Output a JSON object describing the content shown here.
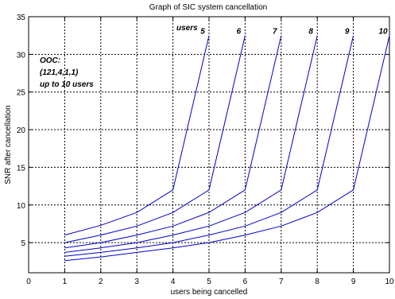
{
  "chart_data": {
    "type": "line",
    "title": "Graph of SIC system cancellation",
    "xlabel": "users being cancelled",
    "ylabel": "SNR after cancellation",
    "xlim": [
      0,
      10
    ],
    "ylim": [
      1,
      35
    ],
    "xticks": [
      0,
      1,
      2,
      3,
      4,
      5,
      6,
      7,
      8,
      9,
      10
    ],
    "yticks": [
      5,
      10,
      15,
      20,
      25,
      30,
      35
    ],
    "grid": true,
    "line_color": "#0000cc",
    "annotation_lines": [
      "OOC:",
      "(121,4,1,1)",
      "up to 10 users"
    ],
    "users_header": "users",
    "series": [
      {
        "label": "5",
        "x": [
          1,
          2,
          3,
          4,
          5
        ],
        "y": [
          6,
          7.3,
          9,
          12,
          32.5
        ]
      },
      {
        "label": "6",
        "x": [
          1,
          2,
          3,
          4,
          5,
          6
        ],
        "y": [
          5,
          6,
          7.2,
          9,
          12,
          32.5
        ]
      },
      {
        "label": "7",
        "x": [
          1,
          2,
          3,
          4,
          5,
          6,
          7
        ],
        "y": [
          4.3,
          5,
          6,
          7.2,
          9,
          12,
          32.5
        ]
      },
      {
        "label": "8",
        "x": [
          1,
          2,
          3,
          4,
          5,
          6,
          7,
          8
        ],
        "y": [
          3.7,
          4.3,
          5,
          6,
          7.2,
          9,
          12,
          32.5
        ]
      },
      {
        "label": "9",
        "x": [
          1,
          2,
          3,
          4,
          5,
          6,
          7,
          8,
          9
        ],
        "y": [
          3.2,
          3.7,
          4.3,
          5,
          6,
          7.2,
          9,
          12,
          32.5
        ]
      },
      {
        "label": "10",
        "x": [
          1,
          2,
          3,
          4,
          5,
          6,
          7,
          8,
          9,
          10
        ],
        "y": [
          2.6,
          3.1,
          3.7,
          4.3,
          5,
          6,
          7.2,
          9,
          12,
          32.5
        ]
      }
    ]
  }
}
